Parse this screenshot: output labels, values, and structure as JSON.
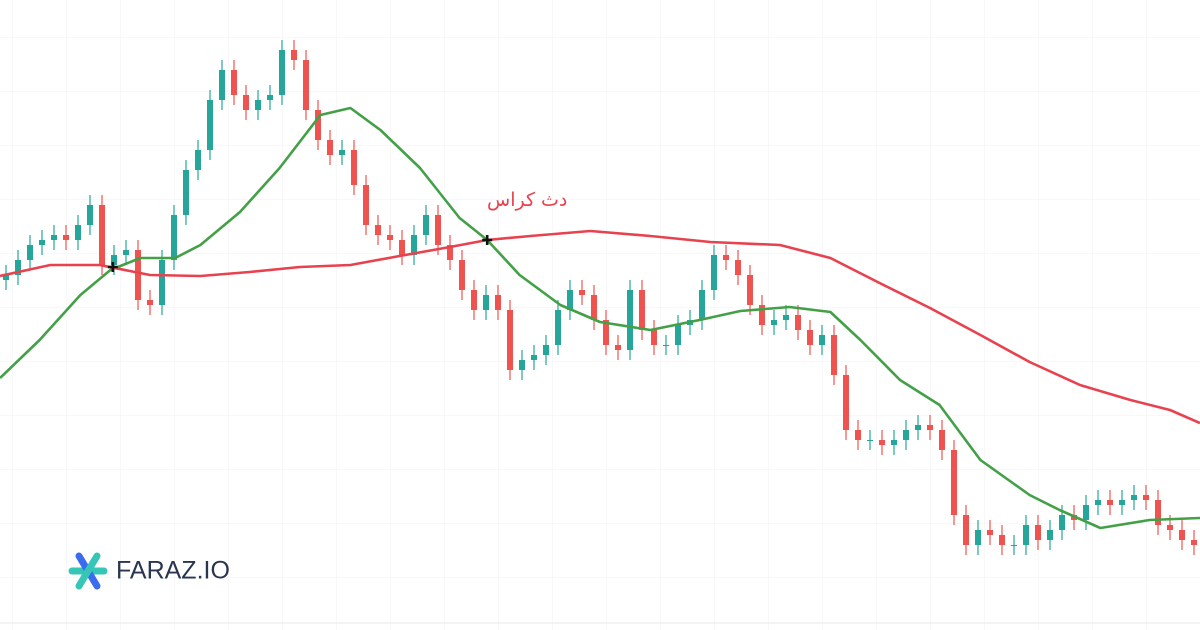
{
  "chart_data": {
    "type": "candlestick",
    "annotation": "دث کراس",
    "brand": "FARAZ.IO",
    "xlim": [
      -0.5,
      99.5
    ],
    "ylim": [
      0,
      630
    ],
    "up_color": "#26a69a",
    "down_color": "#ef5350",
    "open": [
      350,
      355,
      370,
      385,
      390,
      395,
      390,
      405,
      425,
      365,
      375,
      380,
      330,
      325,
      370,
      415,
      460,
      480,
      530,
      560,
      535,
      520,
      530,
      535,
      580,
      570,
      520,
      490,
      475,
      480,
      445,
      405,
      395,
      390,
      375,
      395,
      415,
      385,
      370,
      340,
      320,
      335,
      320,
      260,
      270,
      275,
      285,
      320,
      340,
      335,
      310,
      285,
      280,
      340,
      300,
      285,
      285,
      305,
      310,
      340,
      375,
      370,
      355,
      325,
      305,
      310,
      315,
      300,
      285,
      295,
      255,
      200,
      190,
      190,
      185,
      190,
      200,
      205,
      200,
      180,
      115,
      85,
      100,
      95,
      85,
      85,
      105,
      90,
      100,
      115,
      110,
      125,
      130,
      125,
      130,
      135,
      130,
      105,
      100,
      90
    ],
    "high": [
      365,
      380,
      395,
      400,
      405,
      405,
      415,
      435,
      435,
      385,
      390,
      390,
      340,
      380,
      425,
      470,
      490,
      540,
      570,
      570,
      545,
      540,
      545,
      590,
      590,
      580,
      530,
      500,
      490,
      490,
      455,
      415,
      405,
      400,
      405,
      425,
      425,
      395,
      380,
      350,
      345,
      345,
      330,
      280,
      285,
      295,
      330,
      350,
      350,
      345,
      320,
      295,
      350,
      350,
      310,
      295,
      315,
      320,
      350,
      385,
      385,
      380,
      365,
      335,
      320,
      325,
      325,
      310,
      305,
      305,
      265,
      210,
      200,
      200,
      200,
      210,
      215,
      215,
      210,
      190,
      125,
      110,
      110,
      105,
      95,
      115,
      115,
      110,
      125,
      125,
      135,
      140,
      140,
      140,
      145,
      145,
      140,
      115,
      110,
      100
    ],
    "low": [
      340,
      345,
      360,
      375,
      380,
      380,
      380,
      395,
      355,
      355,
      365,
      320,
      315,
      315,
      360,
      405,
      450,
      470,
      520,
      525,
      510,
      510,
      520,
      525,
      560,
      510,
      480,
      465,
      465,
      435,
      395,
      385,
      380,
      365,
      365,
      385,
      375,
      360,
      330,
      310,
      310,
      310,
      250,
      250,
      260,
      265,
      275,
      310,
      325,
      300,
      275,
      270,
      270,
      290,
      275,
      275,
      275,
      295,
      300,
      330,
      360,
      345,
      315,
      295,
      295,
      300,
      290,
      275,
      275,
      245,
      190,
      180,
      180,
      175,
      175,
      180,
      190,
      190,
      170,
      105,
      75,
      75,
      85,
      75,
      75,
      75,
      80,
      80,
      90,
      100,
      100,
      115,
      115,
      115,
      120,
      120,
      95,
      90,
      80,
      75
    ],
    "close": [
      355,
      370,
      385,
      390,
      395,
      390,
      405,
      425,
      365,
      375,
      380,
      330,
      325,
      370,
      415,
      460,
      480,
      530,
      560,
      535,
      520,
      530,
      535,
      580,
      570,
      520,
      490,
      475,
      480,
      445,
      405,
      395,
      390,
      375,
      395,
      415,
      385,
      370,
      340,
      320,
      335,
      320,
      260,
      270,
      275,
      285,
      320,
      340,
      335,
      310,
      285,
      280,
      340,
      300,
      285,
      285,
      305,
      310,
      340,
      375,
      370,
      355,
      325,
      305,
      310,
      315,
      300,
      285,
      295,
      255,
      200,
      190,
      190,
      185,
      190,
      200,
      205,
      200,
      180,
      115,
      85,
      100,
      95,
      85,
      85,
      105,
      90,
      100,
      115,
      110,
      125,
      130,
      125,
      130,
      135,
      130,
      105,
      100,
      90,
      85
    ],
    "lines": [
      {
        "color": "#43a047",
        "x": [
          -0.5,
          2.8,
          6.2,
          8.7,
          11.2,
          14.1,
          16.2,
          19.5,
          22.8,
          26.2,
          28.7,
          31.2,
          34.5,
          37.8,
          40.1,
          42.8,
          46.2,
          49.5,
          53.7,
          57.8,
          61.2,
          65.3,
          68.7,
          71.2,
          74.5,
          77.8,
          81.2,
          85.3,
          87.8,
          91.2,
          95.3,
          99.5
        ],
        "values": [
          252,
          290,
          335,
          360,
          372,
          372,
          385,
          418,
          462,
          515,
          522,
          500,
          462,
          412,
          390,
          355,
          325,
          308,
          300,
          310,
          319,
          323,
          318,
          290,
          250,
          225,
          170,
          135,
          120,
          102,
          110,
          112
        ]
      },
      {
        "color": "#e8424f",
        "x": [
          -0.5,
          3.7,
          7.8,
          12,
          16.2,
          20.3,
          24.5,
          28.7,
          32.8,
          37,
          40.1,
          43.7,
          48.7,
          53.7,
          58.7,
          64.5,
          68.7,
          72.8,
          77,
          81.2,
          85.3,
          89.5,
          93.7,
          97,
          99.5
        ],
        "values": [
          354,
          365,
          365,
          355,
          354,
          358,
          363,
          365,
          374,
          383,
          390,
          394,
          399,
          394,
          388,
          385,
          372,
          347,
          322,
          295,
          268,
          245,
          230,
          220,
          207
        ]
      }
    ],
    "markers": [
      {
        "x": 8.9,
        "y": 363
      },
      {
        "x": 40.1,
        "y": 390
      }
    ]
  }
}
